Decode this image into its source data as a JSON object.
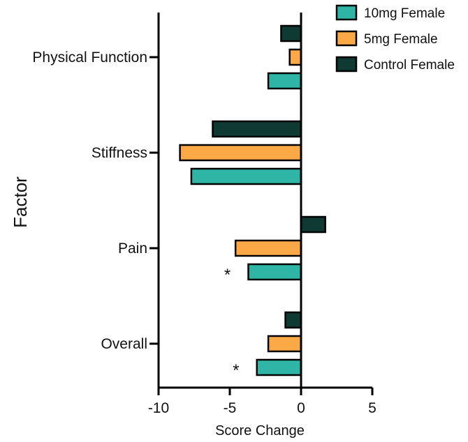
{
  "chart_data": {
    "type": "bar",
    "orientation": "horizontal",
    "title": "",
    "xlabel": "Score Change",
    "ylabel": "Factor",
    "xlim": [
      -10,
      5
    ],
    "xticks": [
      -10,
      -5,
      0,
      5
    ],
    "categories": [
      "Physical Function",
      "Stiffness",
      "Pain",
      "Overall"
    ],
    "series": [
      {
        "name": "10mg Female",
        "color": "#2fb5a6",
        "values": [
          -2.3,
          -7.7,
          -3.7,
          -3.1
        ]
      },
      {
        "name": "5mg Female",
        "color": "#fba846",
        "values": [
          -0.8,
          -8.5,
          -4.6,
          -2.3
        ]
      },
      {
        "name": "Control Female",
        "color": "#0f3a33",
        "values": [
          -1.4,
          -6.2,
          1.7,
          -1.1
        ]
      }
    ],
    "legend_position": "top-right",
    "grid": false,
    "annotations": [
      {
        "category": "Pain",
        "series": "10mg Female",
        "text": "*"
      },
      {
        "category": "Overall",
        "series": "10mg Female",
        "text": "*"
      }
    ]
  }
}
